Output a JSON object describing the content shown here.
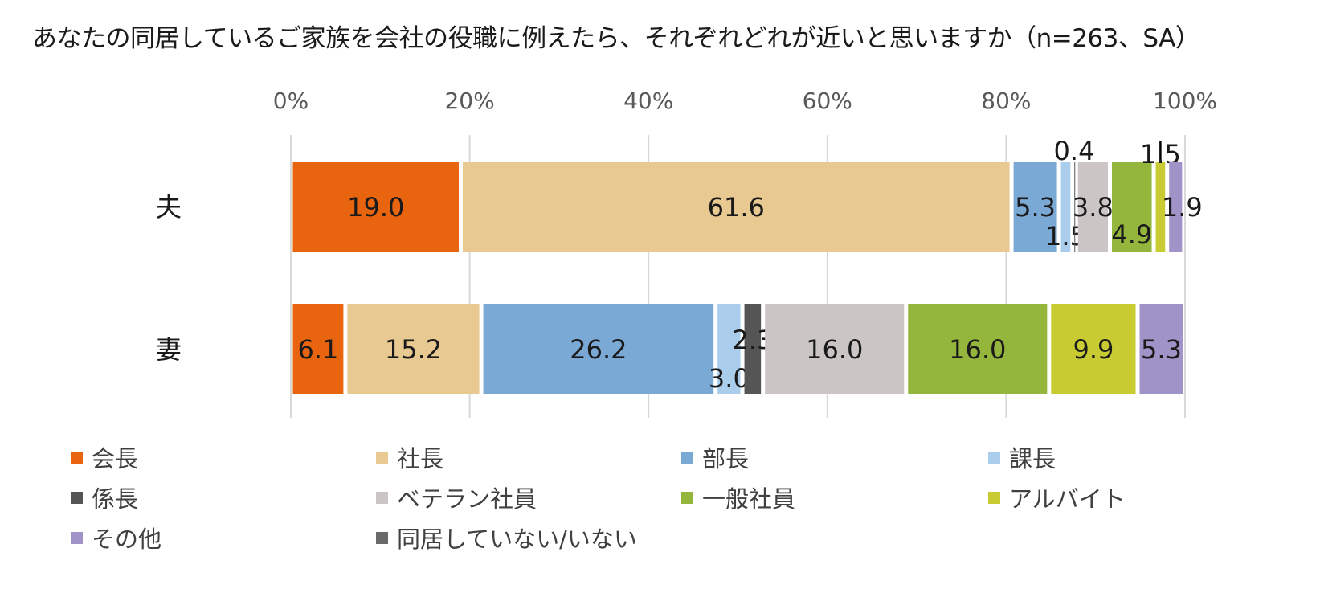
{
  "chart_data": {
    "type": "bar",
    "orientation": "horizontal",
    "stacked": true,
    "title": "あなたの同居しているご家族を会社の役職に例えたら、それぞれどれが近いと思いますか（n=263、SA）",
    "xlabel": "",
    "ylabel": "",
    "xlim": [
      0,
      100
    ],
    "x_ticks": [
      "0%",
      "20%",
      "40%",
      "60%",
      "80%",
      "100%"
    ],
    "categories": [
      "夫",
      "妻"
    ],
    "grid": true,
    "legend_position": "bottom",
    "series": [
      {
        "name": "会長",
        "color": "#E8640F",
        "values": [
          19.0,
          6.1
        ],
        "labels": [
          "19.0",
          "6.1"
        ]
      },
      {
        "name": "社長",
        "color": "#E8C991",
        "values": [
          61.6,
          15.2
        ],
        "labels": [
          "61.6",
          "15.2"
        ]
      },
      {
        "name": "部長",
        "color": "#7BA9D5",
        "values": [
          5.3,
          26.2
        ],
        "labels": [
          "5.3",
          "26.2"
        ]
      },
      {
        "name": "課長",
        "color": "#A9CDEB",
        "values": [
          1.5,
          3.0
        ],
        "labels": [
          "1.5",
          "3.0"
        ]
      },
      {
        "name": "係長",
        "color": "#555555",
        "values": [
          0.4,
          2.3
        ],
        "labels": [
          "0.4",
          "2.3"
        ]
      },
      {
        "name": "ベテラン社員",
        "color": "#CBC6C5",
        "values": [
          3.8,
          16.0
        ],
        "labels": [
          "3.8",
          "16.0"
        ]
      },
      {
        "name": "一般社員",
        "color": "#94B63D",
        "values": [
          4.9,
          16.0
        ],
        "labels": [
          "4.9",
          "16.0"
        ]
      },
      {
        "name": "アルバイト",
        "color": "#C9CB32",
        "values": [
          1.5,
          9.9
        ],
        "labels": [
          "1.5",
          "9.9"
        ]
      },
      {
        "name": "その他",
        "color": "#A093C7",
        "values": [
          1.9,
          5.3
        ],
        "labels": [
          "1.9",
          "5.3"
        ]
      },
      {
        "name": "同居していない/いない",
        "color": "#6A6A6A",
        "values": [
          0,
          0
        ],
        "labels": [
          "",
          ""
        ]
      }
    ]
  }
}
